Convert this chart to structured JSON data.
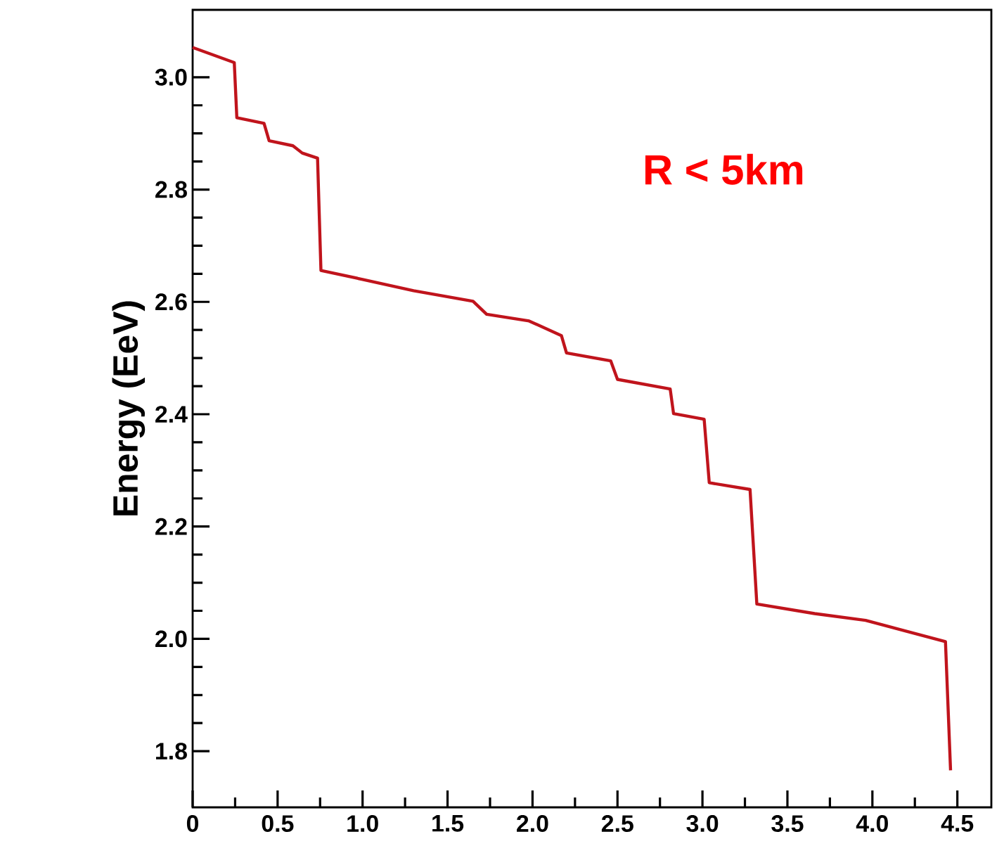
{
  "chart_data": {
    "type": "line",
    "ylabel": "Energy (EeV)",
    "annotations": [
      "R < 5km"
    ],
    "x": [
      0,
      0.245,
      0.26,
      0.42,
      0.45,
      0.59,
      0.645,
      0.735,
      0.755,
      1.0,
      1.3,
      1.65,
      1.73,
      1.98,
      2.17,
      2.2,
      2.46,
      2.5,
      2.81,
      2.83,
      3.01,
      3.04,
      3.28,
      3.32,
      3.66,
      3.96,
      4.43,
      4.46
    ],
    "series": [
      {
        "color": "#c0141c",
        "values": [
          3.053,
          3.026,
          2.928,
          2.918,
          2.887,
          2.878,
          2.865,
          2.856,
          2.656,
          2.64,
          2.62,
          2.601,
          2.578,
          2.566,
          2.54,
          2.509,
          2.495,
          2.462,
          2.445,
          2.401,
          2.391,
          2.278,
          2.266,
          2.062,
          2.045,
          2.033,
          1.995,
          1.766
        ]
      }
    ],
    "xlim": [
      0,
      4.7
    ],
    "ylim": [
      1.7,
      3.12
    ],
    "xticks": [
      0,
      0.5,
      {
        "value": 1.0,
        "label": "1.0"
      },
      1.5,
      {
        "value": 2.0,
        "label": "2.0"
      },
      2.5,
      {
        "value": 3.0,
        "label": "3.0"
      },
      3.5,
      {
        "value": 4.0,
        "label": "4.0"
      },
      4.5
    ],
    "yticks": [
      1.8,
      {
        "value": 2.0,
        "label": "2.0"
      },
      2.2,
      2.4,
      2.6,
      2.8,
      {
        "value": 3.0,
        "label": "3.0"
      }
    ]
  }
}
